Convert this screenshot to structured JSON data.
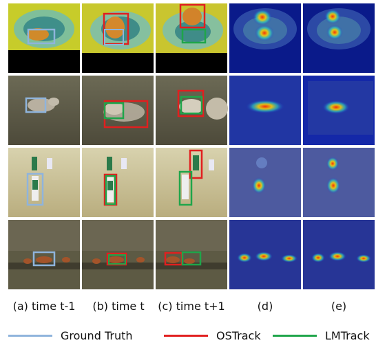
{
  "captions": {
    "a": "(a) time t-1",
    "b": "(b) time t",
    "c": "(c) time t+1",
    "d": "(d)",
    "e": "(e)"
  },
  "legend": {
    "gt": "Ground Truth",
    "ostrack": "OSTrack",
    "lmtrack": "LMTrack"
  },
  "colors": {
    "ground_truth": "#8fb4dc",
    "ostrack": "#e11f1f",
    "lmtrack": "#1fa54a"
  }
}
